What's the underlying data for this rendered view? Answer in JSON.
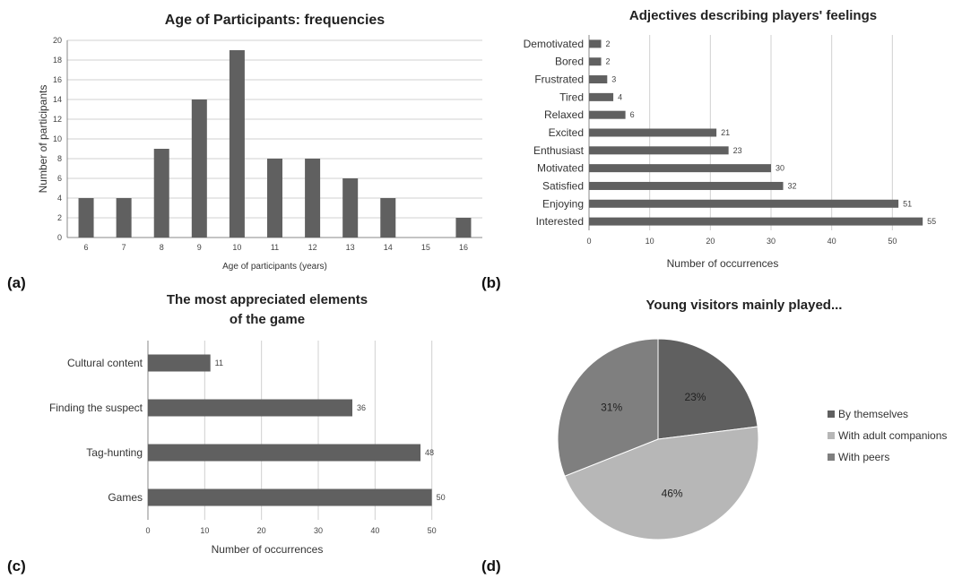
{
  "figures": {
    "a": {
      "panel_label": "(a)"
    },
    "b": {
      "panel_label": "(b)"
    },
    "c": {
      "panel_label": "(c)"
    },
    "d": {
      "panel_label": "(d)"
    }
  },
  "colors": {
    "bar": "#606060",
    "grid": "#d0d0d0",
    "axis": "#888888",
    "slice_self": "#606060",
    "slice_adult": "#b7b7b7",
    "slice_peers": "#7f7f7f"
  },
  "chart_data": [
    {
      "id": "a",
      "type": "bar",
      "title": "Age of Participants: frequencies",
      "xlabel": "Age of participants (years)",
      "ylabel": "Number of participants",
      "categories": [
        "6",
        "7",
        "8",
        "9",
        "10",
        "11",
        "12",
        "13",
        "14",
        "15",
        "16"
      ],
      "values": [
        4,
        4,
        9,
        14,
        19,
        8,
        8,
        6,
        4,
        0,
        2
      ],
      "ylim": [
        0,
        20
      ],
      "yticks": [
        0,
        2,
        4,
        6,
        8,
        10,
        12,
        14,
        16,
        18,
        20
      ],
      "grid": true
    },
    {
      "id": "b",
      "type": "bar",
      "orientation": "horizontal",
      "title": "Adjectives describing players' feelings",
      "xlabel": "Number of occurrences",
      "categories": [
        "Demotivated",
        "Bored",
        "Frustrated",
        "Tired",
        "Relaxed",
        "Excited",
        "Enthusiast",
        "Motivated",
        "Satisfied",
        "Enjoying",
        "Interested"
      ],
      "values": [
        2,
        2,
        3,
        4,
        6,
        21,
        23,
        30,
        32,
        51,
        55
      ],
      "xlim": [
        0,
        60
      ],
      "xticks": [
        0,
        10,
        20,
        30,
        40,
        50
      ],
      "data_labels": true,
      "grid": true
    },
    {
      "id": "c",
      "type": "bar",
      "orientation": "horizontal",
      "title": [
        "The most appreciated elements",
        "of the game"
      ],
      "xlabel": "Number of occurrences",
      "categories": [
        "Cultural content",
        "Finding the suspect",
        "Tag-hunting",
        "Games"
      ],
      "values": [
        11,
        36,
        48,
        50
      ],
      "xlim": [
        0,
        60
      ],
      "xticks": [
        0,
        10,
        20,
        30,
        40,
        50
      ],
      "data_labels": true,
      "grid": true
    },
    {
      "id": "d",
      "type": "pie",
      "title": "Young visitors mainly played...",
      "labels": [
        "By themselves",
        "With adult companions",
        "With peers"
      ],
      "values": [
        23,
        46,
        31
      ],
      "value_labels": [
        "23%",
        "46%",
        "31%"
      ],
      "legend": "right"
    }
  ]
}
